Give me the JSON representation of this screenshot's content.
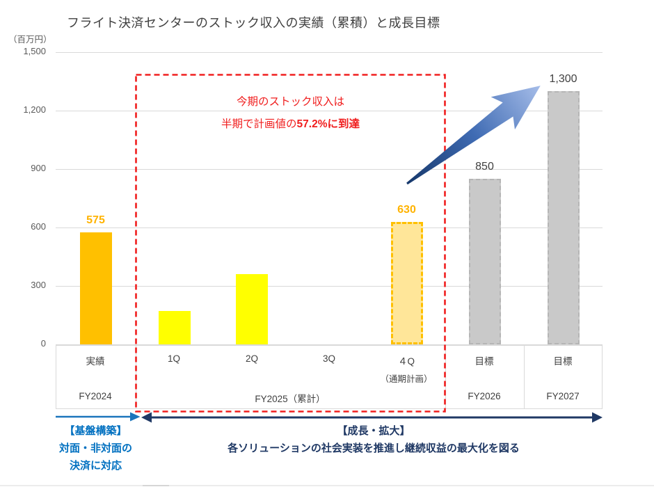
{
  "title": "フライト決済センターのストック収入の実績（累積）と成長目標",
  "unit_label": "（百万円）",
  "chart_data": {
    "type": "bar",
    "title": "フライト決済センターのストック収入の実績（累積）と成長目標",
    "ylabel": "百万円",
    "ylim": [
      0,
      1500
    ],
    "grid": true,
    "yticks": [
      {
        "value": 0,
        "label": "0"
      },
      {
        "value": 300,
        "label": "300"
      },
      {
        "value": 600,
        "label": "600"
      },
      {
        "value": 900,
        "label": "900"
      },
      {
        "value": 1200,
        "label": "1,200"
      },
      {
        "value": 1500,
        "label": "1,500"
      }
    ],
    "bars": [
      {
        "category": "実績",
        "group": "FY2024",
        "value": 575,
        "label": "575",
        "style": "solid-orange",
        "label_color": "orange"
      },
      {
        "category": "1Q",
        "group": "FY2025（累計）",
        "value": 170,
        "label": "",
        "style": "solid-yellow",
        "label_color": ""
      },
      {
        "category": "2Q",
        "group": "FY2025（累計）",
        "value": 360,
        "label": "",
        "style": "solid-yellow",
        "label_color": ""
      },
      {
        "category": "3Q",
        "group": "FY2025（累計）",
        "value": null,
        "label": "",
        "style": "none",
        "label_color": ""
      },
      {
        "category": "４Q（通期計画）",
        "group": "FY2025（累計）",
        "value": 630,
        "label": "630",
        "style": "dashed-gold",
        "label_color": "orange"
      },
      {
        "category": "目標",
        "group": "FY2026",
        "value": 850,
        "label": "850",
        "style": "dashed-gray",
        "label_color": "dark"
      },
      {
        "category": "目標",
        "group": "FY2027",
        "value": 1300,
        "label": "1,300",
        "style": "dashed-gray",
        "label_color": "dark"
      }
    ]
  },
  "annotation": {
    "line1": "今期のストック収入は",
    "line2_prefix": "半期で計画値の",
    "line2_emphasis": "57.2%に到達"
  },
  "xaxis": {
    "row1": [
      "実績",
      "1Q",
      "2Q",
      "3Q",
      "４Q",
      "目標",
      "目標"
    ],
    "sub_4q": "（通期計画）",
    "row2": [
      "FY2024",
      "FY2025（累計）",
      "FY2026",
      "FY2027"
    ]
  },
  "footer": {
    "phase1": {
      "title": "【基盤構築】",
      "line1": "対面・非対面の",
      "line2": "決済に対応"
    },
    "phase2": {
      "title": "【成長・拡大】",
      "line": "各ソリューションの社会実装を推進し継続収益の最大化を図る"
    }
  },
  "colors": {
    "actual_bar": "#FFC000",
    "quarter_bar": "#FFFF00",
    "plan_bar_fill": "#FFE699",
    "plan_bar_border": "#FFC000",
    "target_bar": "#C9C9C9",
    "highlight_red": "#F01E1E",
    "phase1_blue": "#0070C0",
    "phase2_navy": "#1F3864",
    "title_gray": "#404040",
    "axis_gray": "#595959",
    "grid_gray": "#D9D9D9"
  }
}
